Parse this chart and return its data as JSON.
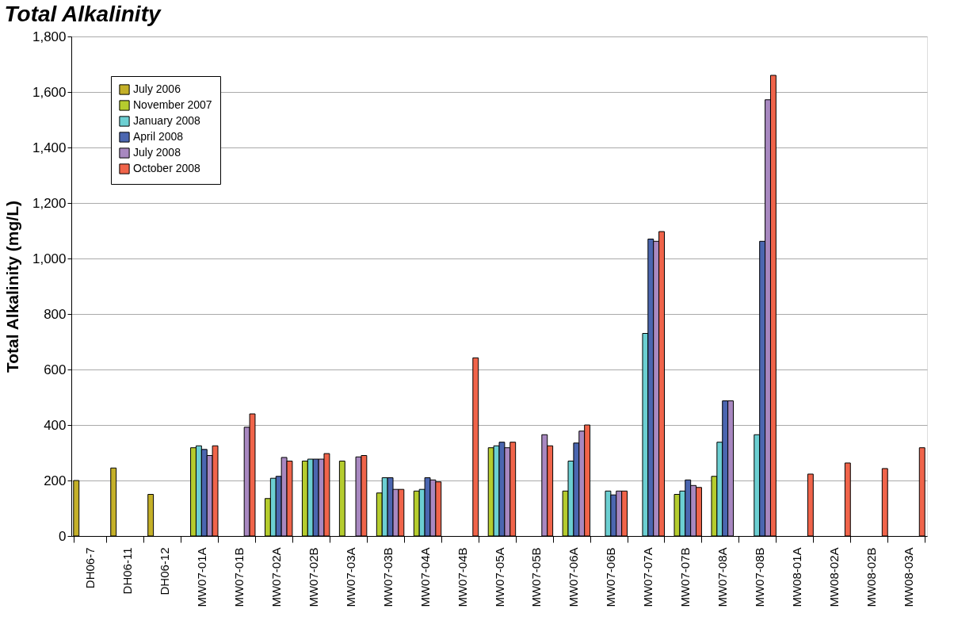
{
  "chart_data": {
    "type": "bar",
    "title": "Total Alkalinity",
    "ylabel": "Total Alkalinity (mg/L)",
    "categories": [
      "DH06-7",
      "DH06-11",
      "DH06-12",
      "MW07-01A",
      "MW07-01B",
      "MW07-02A",
      "MW07-02B",
      "MW07-03A",
      "MW07-03B",
      "MW07-04A",
      "MW07-04B",
      "MW07-05A",
      "MW07-05B",
      "MW07-06A",
      "MW07-06B",
      "MW07-07A",
      "MW07-07B",
      "MW07-08A",
      "MW07-08B",
      "MW08-01A",
      "MW08-02A",
      "MW08-02B",
      "MW08-03A"
    ],
    "series": [
      {
        "name": "July 2006",
        "color": "#c4b028",
        "values": [
          200,
          245,
          150,
          null,
          null,
          null,
          null,
          null,
          null,
          null,
          null,
          null,
          null,
          null,
          null,
          null,
          null,
          null,
          null,
          null,
          null,
          null,
          null
        ]
      },
      {
        "name": "November 2007",
        "color": "#b5cc2e",
        "values": [
          null,
          null,
          null,
          318,
          null,
          135,
          270,
          270,
          155,
          162,
          null,
          318,
          null,
          162,
          null,
          null,
          150,
          215,
          null,
          null,
          null,
          null,
          null
        ]
      },
      {
        "name": "January 2008",
        "color": "#6ccfd2",
        "values": [
          null,
          null,
          null,
          325,
          null,
          208,
          277,
          null,
          210,
          168,
          null,
          325,
          null,
          270,
          162,
          730,
          162,
          338,
          365,
          null,
          null,
          null,
          null
        ]
      },
      {
        "name": "April 2008",
        "color": "#4b66b0",
        "values": [
          null,
          null,
          null,
          312,
          null,
          215,
          277,
          null,
          210,
          210,
          null,
          338,
          null,
          335,
          148,
          1070,
          202,
          487,
          1062,
          null,
          null,
          null,
          null
        ]
      },
      {
        "name": "July 2008",
        "color": "#a888c0",
        "values": [
          null,
          null,
          null,
          290,
          392,
          283,
          277,
          285,
          168,
          202,
          null,
          318,
          365,
          378,
          162,
          1062,
          182,
          487,
          1572,
          null,
          null,
          null,
          null
        ]
      },
      {
        "name": "October 2008",
        "color": "#f0644a",
        "values": [
          null,
          null,
          null,
          325,
          440,
          270,
          297,
          290,
          168,
          195,
          642,
          338,
          325,
          400,
          162,
          1097,
          175,
          null,
          1660,
          223,
          263,
          243,
          318
        ]
      }
    ],
    "ylim": [
      0,
      1800
    ],
    "yticks": [
      {
        "value": 0,
        "label": "0"
      },
      {
        "value": 200,
        "label": "200"
      },
      {
        "value": 400,
        "label": "400"
      },
      {
        "value": 600,
        "label": "600"
      },
      {
        "value": 800,
        "label": "800"
      },
      {
        "value": 1000,
        "label": "1,000"
      },
      {
        "value": 1200,
        "label": "1,200"
      },
      {
        "value": 1400,
        "label": "1,400"
      },
      {
        "value": 1600,
        "label": "1,600"
      },
      {
        "value": 1800,
        "label": "1,800"
      }
    ],
    "grid": "y",
    "legend": "top left"
  }
}
